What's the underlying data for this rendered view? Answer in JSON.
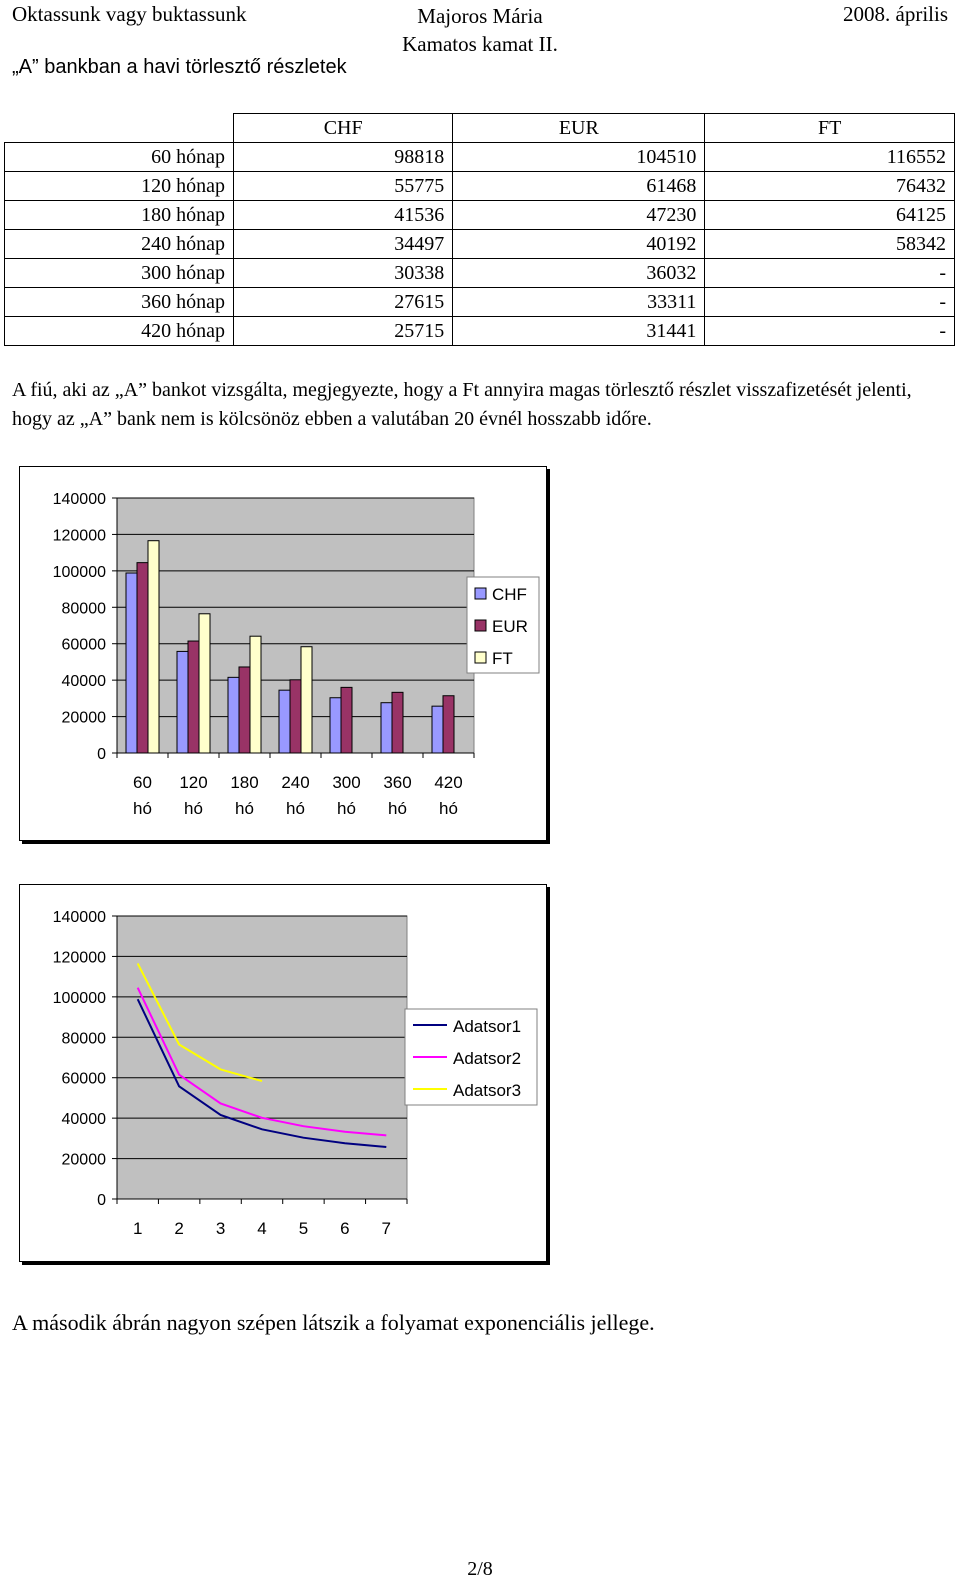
{
  "header": {
    "left": "Oktassunk vagy buktassunk",
    "center_line1": "Majoros Mária",
    "center_line2": "Kamatos kamat II.",
    "right": "2008. április"
  },
  "section_title": "„A” bankban a havi törlesztő részletek",
  "table": {
    "columns": [
      "CHF",
      "EUR",
      "FT"
    ],
    "rows": [
      {
        "label": "60 hónap",
        "values": [
          "98818",
          "104510",
          "116552"
        ]
      },
      {
        "label": "120 hónap",
        "values": [
          "55775",
          "61468",
          "76432"
        ]
      },
      {
        "label": "180 hónap",
        "values": [
          "41536",
          "47230",
          "64125"
        ]
      },
      {
        "label": "240 hónap",
        "values": [
          "34497",
          "40192",
          "58342"
        ]
      },
      {
        "label": "300 hónap",
        "values": [
          "30338",
          "36032",
          "-"
        ]
      },
      {
        "label": "360 hónap",
        "values": [
          "27615",
          "33311",
          "-"
        ]
      },
      {
        "label": "420 hónap",
        "values": [
          "25715",
          "31441",
          "-"
        ]
      }
    ]
  },
  "paragraph1": "A fiú, aki az „A” bankot vizsgálta, megjegyezte, hogy a Ft annyira magas törlesztő részlet visszafizetését jelenti, hogy az „A” bank nem is kölcsönöz ebben a valutában 20 évnél hosszabb időre.",
  "chart_data": [
    {
      "type": "bar",
      "categories": [
        [
          "60",
          "hó"
        ],
        [
          "120",
          "hó"
        ],
        [
          "180",
          "hó"
        ],
        [
          "240",
          "hó"
        ],
        [
          "300",
          "hó"
        ],
        [
          "360",
          "hó"
        ],
        [
          "420",
          "hó"
        ]
      ],
      "series": [
        {
          "name": "CHF",
          "color": "#9999ff",
          "values": [
            98818,
            55775,
            41536,
            34497,
            30338,
            27615,
            25715
          ]
        },
        {
          "name": "EUR",
          "color": "#993366",
          "values": [
            104510,
            61468,
            47230,
            40192,
            36032,
            33311,
            31441
          ]
        },
        {
          "name": "FT",
          "color": "#ffffcc",
          "values": [
            116552,
            76432,
            64125,
            58342,
            null,
            null,
            null
          ]
        }
      ],
      "yticks": [
        "0",
        "20000",
        "40000",
        "60000",
        "80000",
        "100000",
        "120000",
        "140000"
      ],
      "ylim": [
        0,
        140000
      ],
      "plot_bg": "#c0c0c0",
      "legend": "right"
    },
    {
      "type": "line",
      "x": [
        "1",
        "2",
        "3",
        "4",
        "5",
        "6",
        "7"
      ],
      "series": [
        {
          "name": "Adatsor1",
          "color": "#000080",
          "values": [
            98818,
            55775,
            41536,
            34497,
            30338,
            27615,
            25715
          ]
        },
        {
          "name": "Adatsor2",
          "color": "#ff00ff",
          "values": [
            104510,
            61468,
            47230,
            40192,
            36032,
            33311,
            31441
          ]
        },
        {
          "name": "Adatsor3",
          "color": "#ffff00",
          "values": [
            116552,
            76432,
            64125,
            58342,
            null,
            null,
            null
          ]
        }
      ],
      "yticks": [
        "0",
        "20000",
        "40000",
        "60000",
        "80000",
        "100000",
        "120000",
        "140000"
      ],
      "ylim": [
        0,
        140000
      ],
      "plot_bg": "#c0c0c0",
      "legend": "right"
    }
  ],
  "paragraph2": "A második ábrán nagyon szépen látszik a folyamat exponenciális jellege.",
  "page_number": "2/8"
}
